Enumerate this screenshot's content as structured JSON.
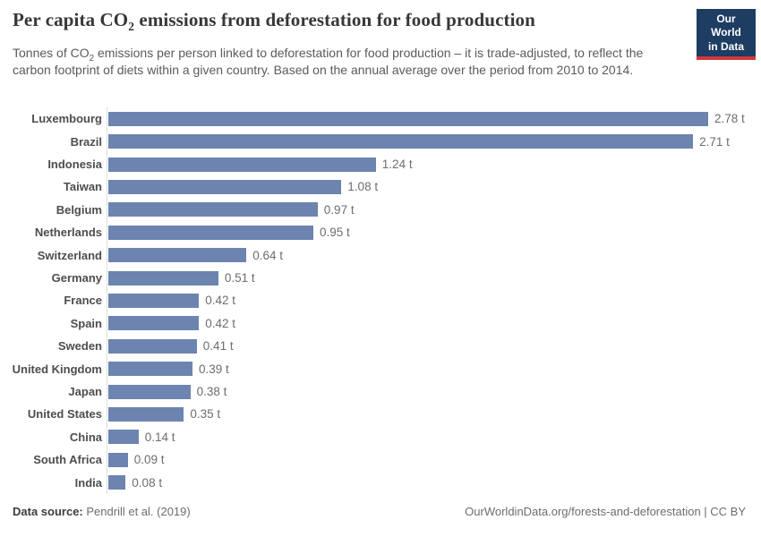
{
  "header": {
    "title_parts": [
      "Per capita CO",
      "2",
      " emissions from deforestation for food production"
    ],
    "subtitle_parts": [
      "Tonnes of CO",
      "2",
      " emissions per person linked to deforestation for food production – it is trade-adjusted, to reflect the carbon footprint of diets within a given country. Based on the annual average over the period from 2010 to 2014."
    ],
    "logo": {
      "line1": "Our World",
      "line2": "in Data"
    }
  },
  "chart_data": {
    "type": "bar",
    "orientation": "horizontal",
    "title": "Per capita CO2 emissions from deforestation for food production",
    "unit": "t",
    "xlim": [
      0,
      2.78
    ],
    "grid": false,
    "categories": [
      "Luxembourg",
      "Brazil",
      "Indonesia",
      "Taiwan",
      "Belgium",
      "Netherlands",
      "Switzerland",
      "Germany",
      "France",
      "Spain",
      "Sweden",
      "United Kingdom",
      "Japan",
      "United States",
      "China",
      "South Africa",
      "India"
    ],
    "values": [
      2.78,
      2.71,
      1.24,
      1.08,
      0.97,
      0.95,
      0.64,
      0.51,
      0.42,
      0.42,
      0.41,
      0.39,
      0.38,
      0.35,
      0.14,
      0.09,
      0.08
    ],
    "value_labels": [
      "2.78 t",
      "2.71 t",
      "1.24 t",
      "1.08 t",
      "0.97 t",
      "0.95 t",
      "0.64 t",
      "0.51 t",
      "0.42 t",
      "0.42 t",
      "0.41 t",
      "0.39 t",
      "0.38 t",
      "0.35 t",
      "0.14 t",
      "0.09 t",
      "0.08 t"
    ]
  },
  "theme": {
    "bar_color": "#6c84af",
    "logo_bg": "#1d3d63",
    "logo_accent": "#d0393e",
    "axis_color": "#dedede"
  },
  "footer": {
    "source_label": "Data source:",
    "source_value": "Pendrill et al. (2019)",
    "link": "OurWorldinData.org/forests-and-deforestation | CC BY"
  }
}
